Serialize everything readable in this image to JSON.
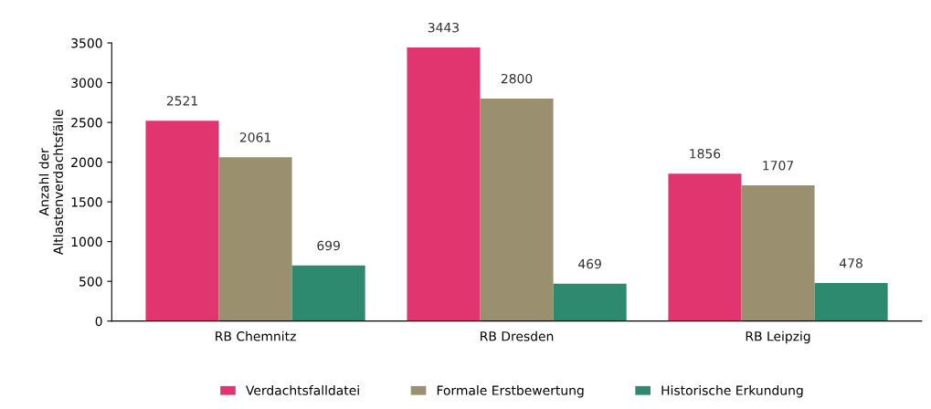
{
  "chart_data": {
    "type": "bar",
    "ylabel": "Anzahl der\nAltlastenverdachtsfälle",
    "categories": [
      "RB Chemnitz",
      "RB Dresden",
      "RB Leipzig"
    ],
    "series": [
      {
        "name": "Verdachtsfalldatei",
        "color": "#e0356e",
        "values": [
          2521,
          3443,
          1856
        ]
      },
      {
        "name": "Formale Erstbewertung",
        "color": "#9a9070",
        "values": [
          2061,
          2800,
          1707
        ]
      },
      {
        "name": "Historische Erkundung",
        "color": "#2e8a6e",
        "values": [
          699,
          469,
          478
        ]
      }
    ],
    "ylim": [
      0,
      3500
    ],
    "yticks": [
      0,
      500,
      1000,
      1500,
      2000,
      2500,
      3000,
      3500
    ],
    "data_labels": true,
    "grid": false,
    "legend": "bottom"
  }
}
